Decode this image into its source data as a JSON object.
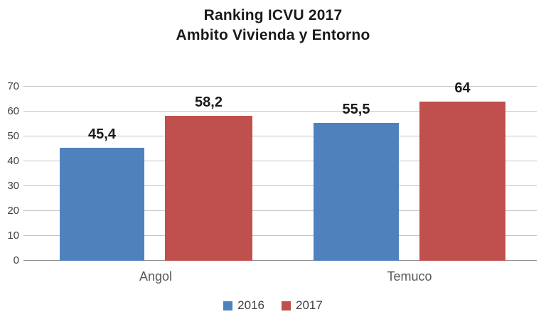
{
  "title": {
    "line1": "Ranking ICVU 2017",
    "line2": "Ambito Vivienda y Entorno"
  },
  "chart_data": {
    "type": "bar",
    "title": "Ranking ICVU 2017\nAmbito Vivienda y Entorno",
    "categories": [
      "Angol",
      "Temuco"
    ],
    "series": [
      {
        "name": "2016",
        "values": [
          45.4,
          55.5
        ],
        "color": "#4F81BD"
      },
      {
        "name": "2017",
        "values": [
          58.2,
          64
        ],
        "color": "#C0504D"
      }
    ],
    "value_labels": [
      [
        "45,4",
        "55,5"
      ],
      [
        "58,2",
        "64"
      ]
    ],
    "xlabel": "",
    "ylabel": "",
    "ylim": [
      0,
      70
    ],
    "ytick_step": 10,
    "yticks": [
      "70",
      "60",
      "50",
      "40",
      "30",
      "20",
      "10",
      "0"
    ],
    "grid": true,
    "legend_position": "bottom",
    "colors": {
      "background": "#ffffff",
      "gridline": "#c6c6c6",
      "axis_line": "#8e8e8e",
      "title_text": "#1a1a1a",
      "tick_text": "#3f3f3f",
      "category_text": "#595959",
      "legend_text": "#404040"
    }
  }
}
